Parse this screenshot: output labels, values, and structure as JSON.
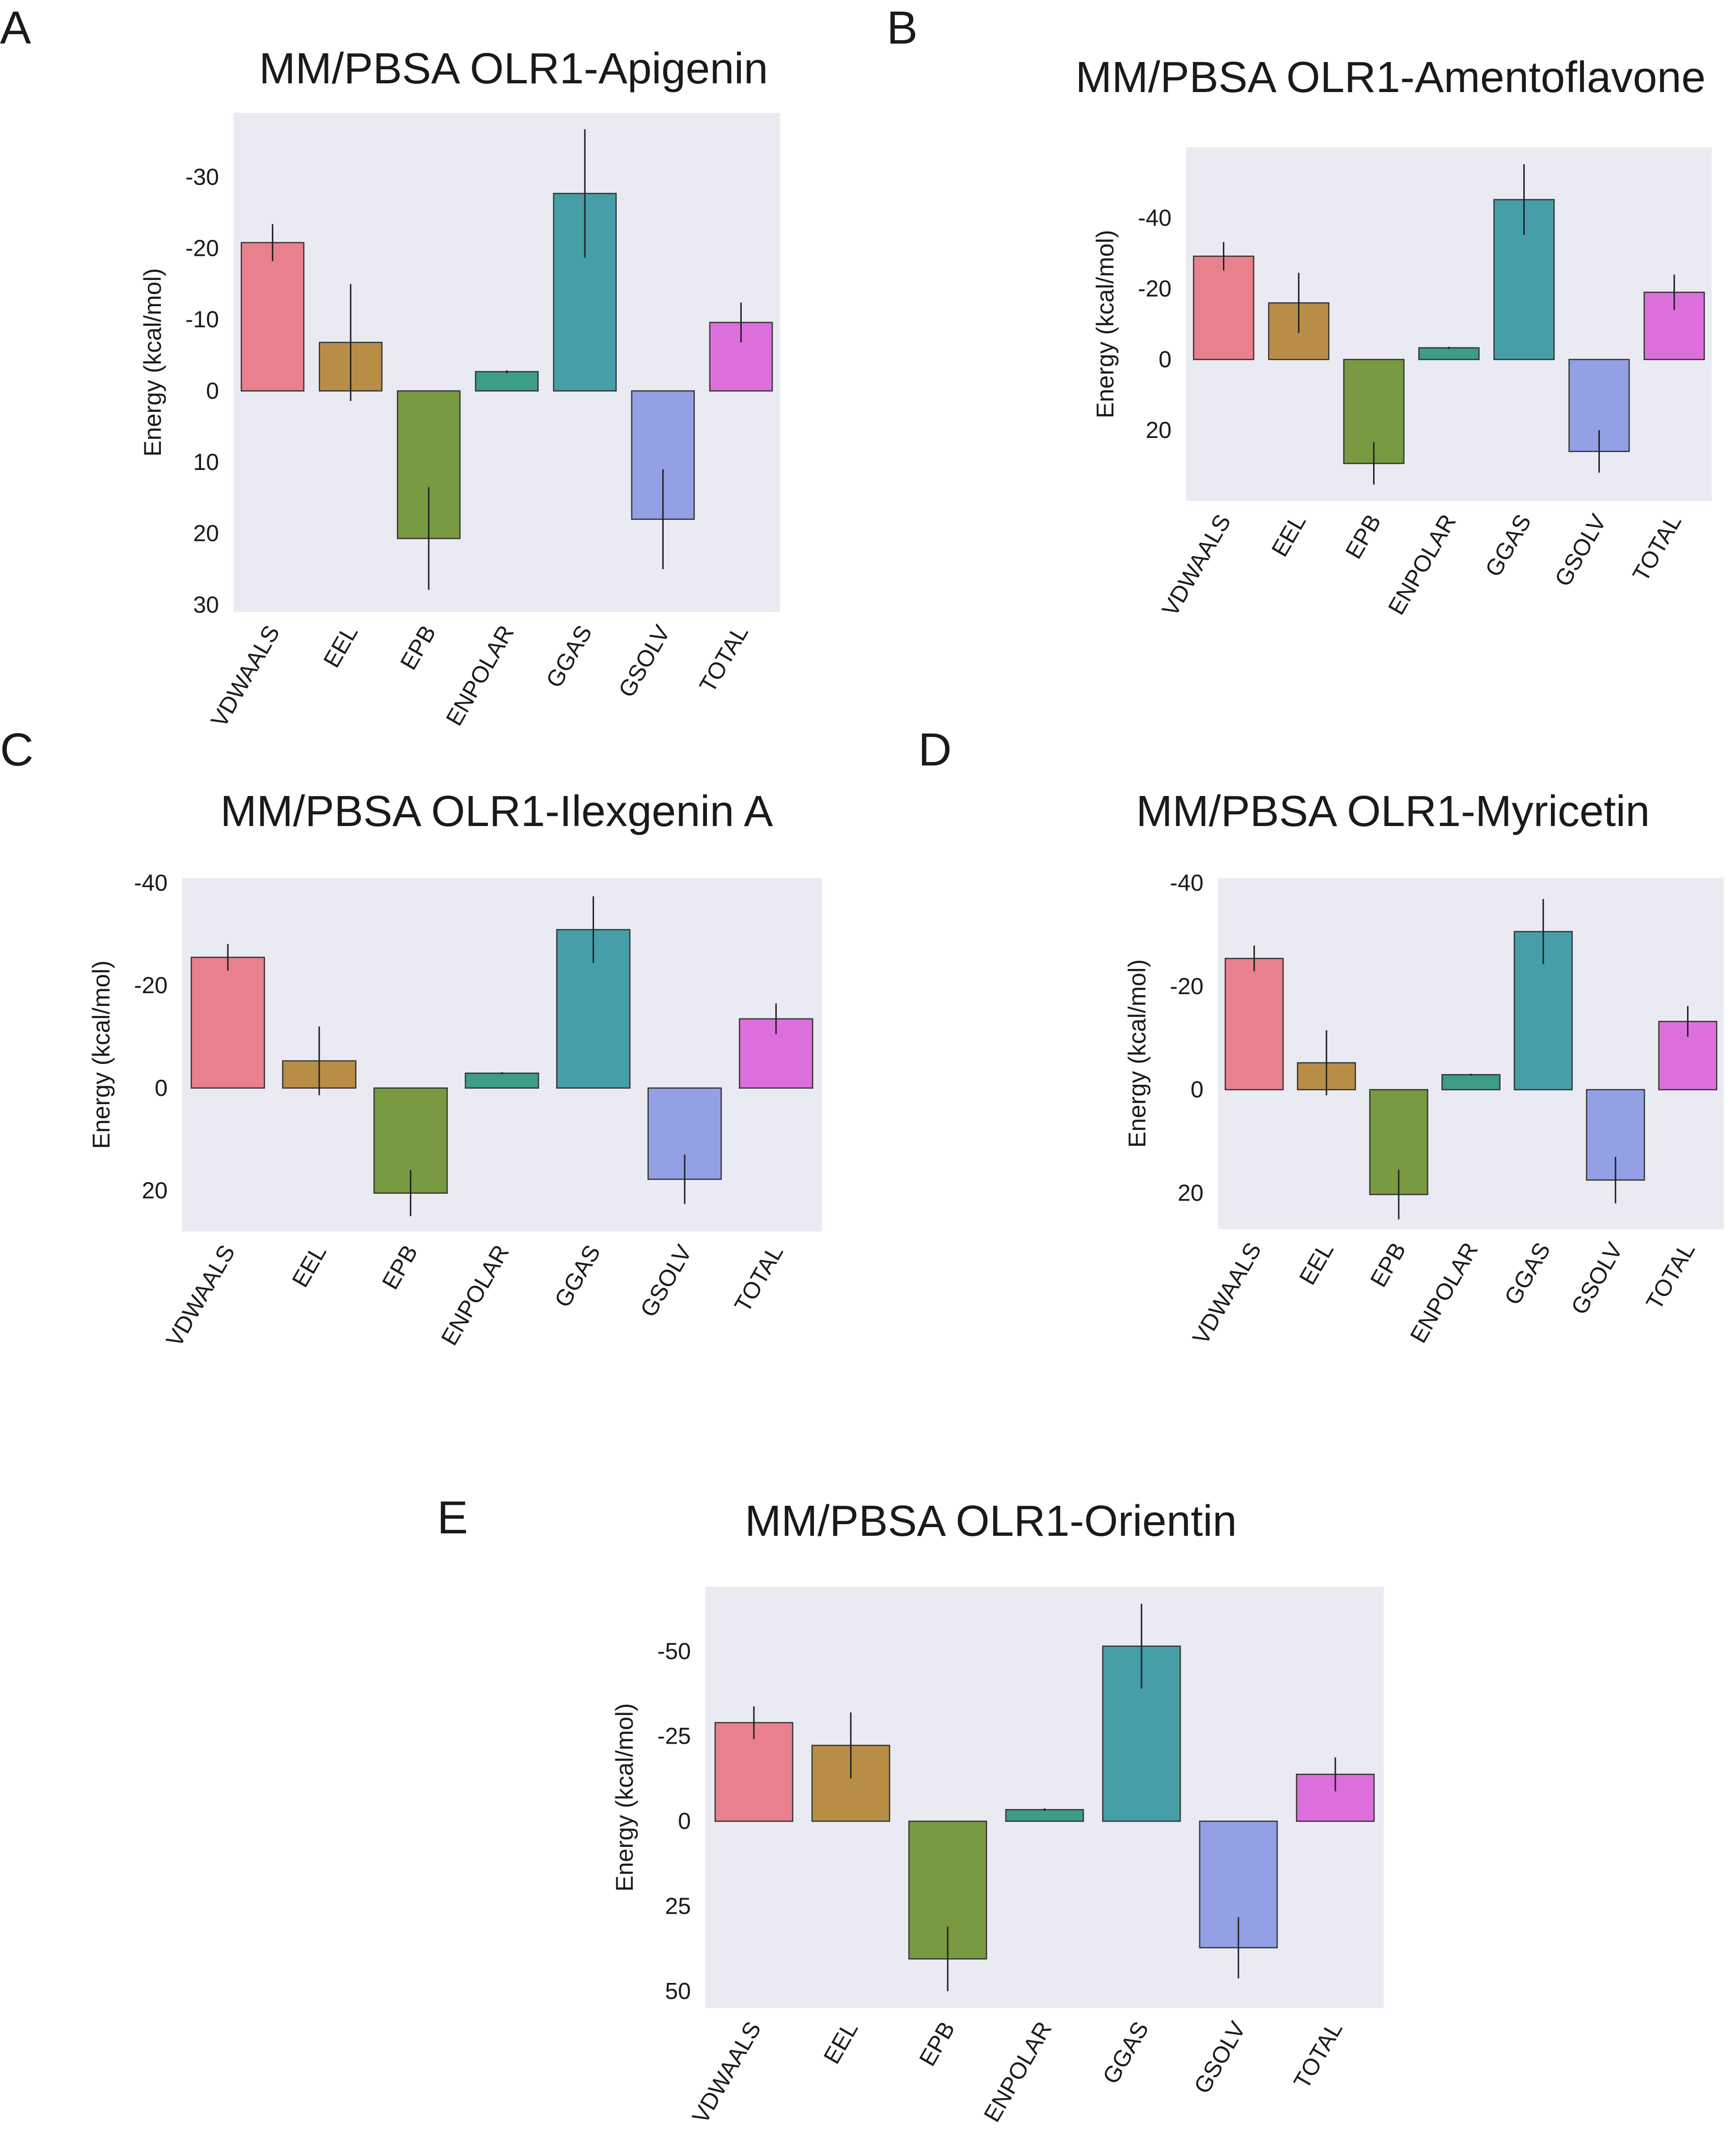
{
  "figure": {
    "categories": [
      "VDWAALS",
      "EEL",
      "EPB",
      "ENPOLAR",
      "GGAS",
      "GSOLV",
      "TOTAL"
    ],
    "colors": [
      "#e8808d",
      "#b88e46",
      "#789a40",
      "#3d9d86",
      "#459ea8",
      "#93a0e6",
      "#dd6fdd"
    ],
    "ylabel": "Energy (kcal/mol)"
  },
  "chart_data": [
    {
      "type": "bar",
      "panel": "A",
      "title": "MM/PBSA OLR1-Apigenin",
      "ylabel": "Energy (kcal/mol)",
      "categories": [
        "VDWAALS",
        "EEL",
        "EPB",
        "ENPOLAR",
        "GGAS",
        "GSOLV",
        "TOTAL"
      ],
      "values": [
        -20.8,
        -6.8,
        20.7,
        -2.7,
        -27.7,
        18.0,
        -9.6
      ],
      "errors": [
        2.6,
        8.2,
        7.2,
        0.2,
        9.0,
        7.0,
        2.8
      ],
      "yticks": [
        -30,
        -20,
        -10,
        0,
        10,
        20,
        30
      ],
      "ytick_labels": [
        "-30",
        "-20",
        "-10",
        "0",
        "10",
        "20",
        "30"
      ],
      "ylim": [
        -39,
        31
      ],
      "y_axis_inverted": true,
      "grid": false
    },
    {
      "type": "bar",
      "panel": "B",
      "title": "MM/PBSA OLR1-Amentoflavone",
      "ylabel": "Energy (kcal/mol)",
      "categories": [
        "VDWAALS",
        "EEL",
        "EPB",
        "ENPOLAR",
        "GGAS",
        "GSOLV",
        "TOTAL"
      ],
      "values": [
        -29.2,
        -16.0,
        29.4,
        -3.3,
        -45.2,
        26.0,
        -19.0
      ],
      "errors": [
        4.0,
        8.5,
        6.0,
        0.3,
        10.0,
        6.0,
        5.0
      ],
      "yticks": [
        -40,
        -20,
        0,
        20
      ],
      "ytick_labels": [
        "-40",
        "-20",
        "0",
        "20"
      ],
      "ylim": [
        -60,
        40
      ],
      "y_axis_inverted": true,
      "grid": false
    },
    {
      "type": "bar",
      "panel": "C",
      "title": "MM/PBSA OLR1-Ilexgenin A",
      "ylabel": "Energy (kcal/mol)",
      "categories": [
        "VDWAALS",
        "EEL",
        "EPB",
        "ENPOLAR",
        "GGAS",
        "GSOLV",
        "TOTAL"
      ],
      "values": [
        -25.5,
        -5.3,
        20.5,
        -2.9,
        -30.9,
        17.8,
        -13.5
      ],
      "errors": [
        2.6,
        6.7,
        4.5,
        0.2,
        6.5,
        4.8,
        3.0
      ],
      "yticks": [
        -40,
        -20,
        0,
        20
      ],
      "ytick_labels": [
        "-40",
        "-20",
        "0",
        "20"
      ],
      "ylim": [
        -41,
        28
      ],
      "y_axis_inverted": true,
      "grid": false
    },
    {
      "type": "bar",
      "panel": "D",
      "title": "MM/PBSA OLR1-Myricetin",
      "ylabel": "Energy (kcal/mol)",
      "categories": [
        "VDWAALS",
        "EEL",
        "EPB",
        "ENPOLAR",
        "GGAS",
        "GSOLV",
        "TOTAL"
      ],
      "values": [
        -25.4,
        -5.2,
        20.3,
        -2.9,
        -30.6,
        17.5,
        -13.2
      ],
      "errors": [
        2.5,
        6.3,
        4.8,
        0.2,
        6.3,
        4.5,
        3.0
      ],
      "yticks": [
        -40,
        -20,
        0,
        20
      ],
      "ytick_labels": [
        "-40",
        "-20",
        "0",
        "20"
      ],
      "ylim": [
        -41,
        27
      ],
      "y_axis_inverted": true,
      "grid": false
    },
    {
      "type": "bar",
      "panel": "E",
      "title": "MM/PBSA OLR1-Orientin",
      "ylabel": "Energy (kcal/mol)",
      "categories": [
        "VDWAALS",
        "EEL",
        "EPB",
        "ENPOLAR",
        "GGAS",
        "GSOLV",
        "TOTAL"
      ],
      "values": [
        -29.0,
        -22.3,
        40.5,
        -3.4,
        -51.5,
        37.2,
        -13.8
      ],
      "errors": [
        4.8,
        9.7,
        9.5,
        0.4,
        12.5,
        9.0,
        5.0
      ],
      "yticks": [
        -50,
        -25,
        0,
        25,
        50
      ],
      "ytick_labels": [
        "-50",
        "-25",
        "0",
        "25",
        "50"
      ],
      "ylim": [
        -69,
        55
      ],
      "y_axis_inverted": true,
      "grid": false
    }
  ]
}
